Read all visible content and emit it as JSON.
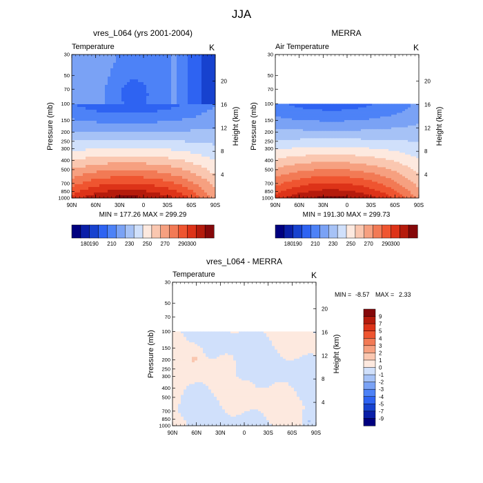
{
  "figure": {
    "title": "JJA"
  },
  "palettes": {
    "temp": [
      "#00007f",
      "#0a1fa8",
      "#1742cf",
      "#2e63f2",
      "#4d82f7",
      "#7aa2f5",
      "#a6c2f6",
      "#d0e0fb",
      "#fde9df",
      "#fac7b0",
      "#f6a080",
      "#f27a55",
      "#ef5530",
      "#dd3318",
      "#b51b0c",
      "#85080a"
    ],
    "diff": [
      "#00007f",
      "#0a1fa8",
      "#1742cf",
      "#2e63f2",
      "#4d82f7",
      "#7aa2f5",
      "#a6c2f6",
      "#d0e0fb",
      "#fde9df",
      "#fac7b0",
      "#f6a080",
      "#f27a55",
      "#ef5530",
      "#dd3318",
      "#b51b0c",
      "#85080a"
    ]
  },
  "axes": {
    "x_ticks": [
      "90N",
      "60N",
      "30N",
      "0",
      "30S",
      "60S",
      "90S"
    ],
    "p_ticks": [
      "30",
      "50",
      "70",
      "100",
      "150",
      "200",
      "250",
      "300",
      "400",
      "500",
      "700",
      "850",
      "1000"
    ],
    "h_ticks": [
      "20",
      "16",
      "12",
      "8",
      "4"
    ],
    "ylabel": "Pressure (mb)",
    "ylabel_right": "Height (km)"
  },
  "chart_data": [
    {
      "id": "model",
      "type": "contour",
      "title": "vres_L064 (yrs 2001-2004)",
      "left_label": "Temperature",
      "right_label": "K",
      "stats": "MIN = 177.26  MAX = 299.29",
      "min": 177.26,
      "max": 299.29,
      "x": [
        90,
        -90
      ],
      "p_range": [
        1000,
        30
      ],
      "colorbar_labels": [
        "180",
        "190",
        "210",
        "230",
        "250",
        "270",
        "290",
        "300"
      ]
    },
    {
      "id": "merra",
      "type": "contour",
      "title": "MERRA",
      "left_label": "Air Temperature",
      "right_label": "K",
      "stats": "MIN = 191.30  MAX = 299.73",
      "min": 191.3,
      "max": 299.73,
      "x": [
        90,
        -90
      ],
      "p_range": [
        1000,
        30
      ],
      "data_top_mb": 100,
      "colorbar_labels": [
        "180",
        "190",
        "210",
        "230",
        "250",
        "270",
        "290",
        "300"
      ]
    },
    {
      "id": "diff",
      "type": "contour",
      "title": "vres_L064 - MERRA",
      "left_label": "Temperature",
      "right_label": "K",
      "stats_min_label": "MIN = ",
      "stats_min": "-8.57",
      "stats_max_label": "MAX = ",
      "stats_max": "2.33",
      "min": -8.57,
      "max": 2.33,
      "x": [
        90,
        -90
      ],
      "p_range": [
        1000,
        30
      ],
      "data_top_mb": 100,
      "colorbar_labels": [
        "9",
        "7",
        "5",
        "4",
        "3",
        "2",
        "1",
        "0",
        "-1",
        "-2",
        "-3",
        "-4",
        "-5",
        "-7",
        "-9"
      ]
    }
  ]
}
